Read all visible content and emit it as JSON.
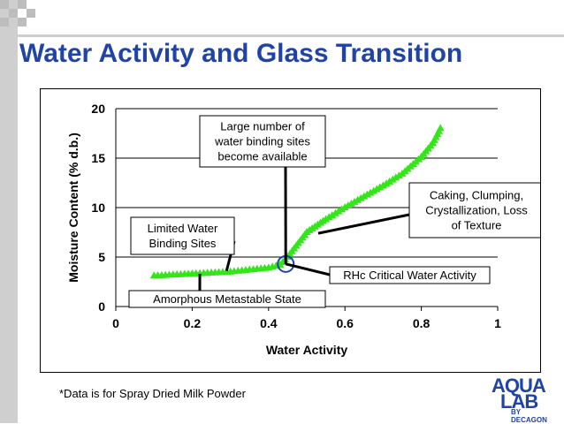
{
  "slide": {
    "title": "Water Activity and Glass Transition",
    "footnote": "*Data is for Spray Dried Milk Powder"
  },
  "logo": {
    "line1": "AQUA",
    "line2": "LAB",
    "line3": "BY DECAGON"
  },
  "colors": {
    "title": "#1f43a6",
    "series": "#33e619",
    "ring": "#1f43a6"
  },
  "chart_data": {
    "type": "scatter",
    "xlabel": "Water Activity",
    "ylabel": "Moisture Content (% d.b.)",
    "xlim": [
      0,
      1
    ],
    "ylim": [
      0,
      20
    ],
    "xticks": [
      "0",
      "0.2",
      "0.4",
      "0.6",
      "0.8",
      "1"
    ],
    "yticks": [
      "0",
      "5",
      "10",
      "15",
      "20"
    ],
    "grid": "horizontal",
    "series": [
      {
        "marker": "triangle",
        "x": [
          0.1,
          0.15,
          0.2,
          0.25,
          0.3,
          0.35,
          0.4,
          0.43,
          0.45,
          0.5,
          0.55,
          0.6,
          0.65,
          0.7,
          0.75,
          0.8,
          0.83,
          0.85
        ],
        "y": [
          3.1,
          3.2,
          3.3,
          3.4,
          3.5,
          3.7,
          3.9,
          4.2,
          5.0,
          7.5,
          8.8,
          10.0,
          11.1,
          12.2,
          13.4,
          15.1,
          16.5,
          18.0
        ]
      }
    ],
    "annotations": [
      {
        "text": [
          "Large number of",
          "water binding sites",
          "become available"
        ],
        "target": [
          0.445,
          4.3
        ]
      },
      {
        "text": [
          "Caking, Clumping,",
          "Crystallization, Loss",
          "of Texture"
        ],
        "target": [
          0.53,
          7.4
        ]
      },
      {
        "text": [
          "Limited Water",
          "Binding Sites"
        ],
        "target": [
          0.29,
          3.6
        ]
      },
      {
        "text": [
          "RHc Critical Water Activity"
        ],
        "target": [
          0.445,
          4.3
        ]
      },
      {
        "text": [
          "Amorphous Metastable State"
        ],
        "target": [
          0.22,
          3.3
        ]
      }
    ],
    "highlight": {
      "x": 0.445,
      "y": 4.3
    }
  }
}
